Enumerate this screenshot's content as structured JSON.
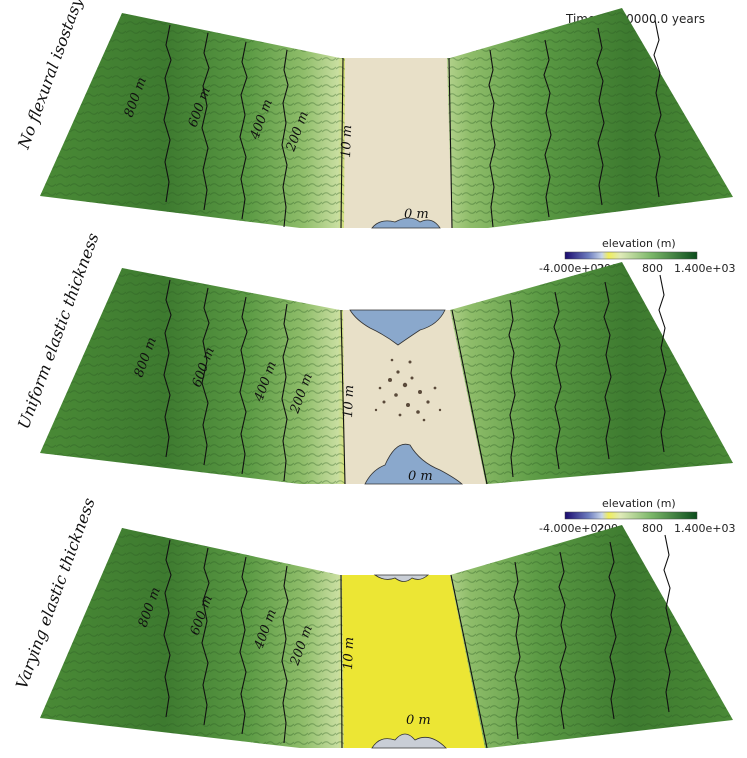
{
  "time_label": "Time: 1000000.0 years",
  "panels": [
    {
      "title": "No flexural isostasy",
      "contours": [
        "800 m",
        "600 m",
        "400 m",
        "200 m",
        "10 m",
        "0 m"
      ],
      "basin": "dry"
    },
    {
      "title": "Uniform elastic thickness",
      "contours": [
        "800 m",
        "600 m",
        "400 m",
        "200 m",
        "10 m",
        "0 m"
      ],
      "basin": "flooded"
    },
    {
      "title": "Varying elastic thickness",
      "contours": [
        "800 m",
        "600 m",
        "400 m",
        "200 m",
        "10 m",
        "0 m"
      ],
      "basin": "sediment"
    }
  ],
  "colorbar": {
    "title": "elevation (m)",
    "tick_labels": [
      "-4.000e+02",
      "200",
      "800",
      "1.400e+03"
    ],
    "colors": [
      "#1a0a6e",
      "#7ea3d0",
      "#f0ee5a",
      "#cfe0a8",
      "#7cb86a",
      "#0b4d1c"
    ]
  },
  "colors": {
    "upland_dark": "#2f6b2a",
    "upland_mid": "#4f8f3a",
    "slope_light": "#b9d48a",
    "coast_yellow": "#ece634",
    "basin_dry": "#e8e0c8",
    "basin_water": "#8aa8cc",
    "contour": "#111111"
  }
}
